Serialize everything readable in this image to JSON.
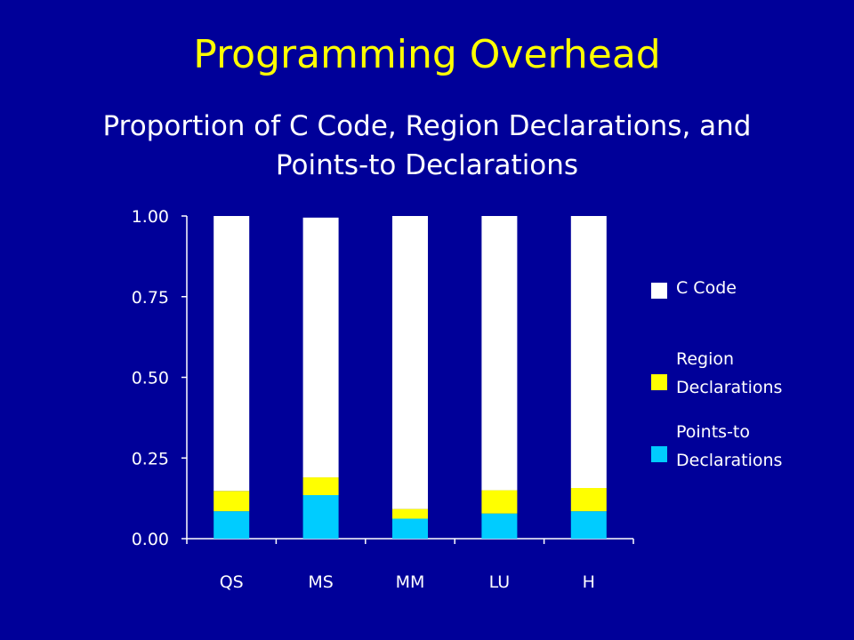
{
  "header": {
    "title": "Programming Overhead",
    "subtitle": "Proportion of C Code, Region Declarations, and Points-to Declarations"
  },
  "chart_data": {
    "type": "bar",
    "stacked": true,
    "categories": [
      "QS",
      "MS",
      "MM",
      "LU",
      "H"
    ],
    "series": [
      {
        "name": "Points-to Declarations",
        "color": "#00ccff",
        "values": [
          0.085,
          0.135,
          0.062,
          0.078,
          0.085
        ]
      },
      {
        "name": "Region Declarations",
        "color": "#ffff00",
        "values": [
          0.063,
          0.055,
          0.03,
          0.072,
          0.072
        ]
      },
      {
        "name": "C Code",
        "color": "#ffffff",
        "values": [
          0.852,
          0.805,
          0.908,
          0.85,
          0.843
        ]
      }
    ],
    "yticks": [
      "0.00",
      "0.25",
      "0.50",
      "0.75",
      "1.00"
    ],
    "ylim": [
      0,
      1
    ],
    "legend_position": "right",
    "legend": [
      {
        "label_lines": [
          "C Code"
        ],
        "color": "#ffffff"
      },
      {
        "label_lines": [
          "Region",
          "Declarations"
        ],
        "color": "#ffff00"
      },
      {
        "label_lines": [
          "Points-to",
          "Declarations"
        ],
        "color": "#00ccff"
      }
    ]
  }
}
